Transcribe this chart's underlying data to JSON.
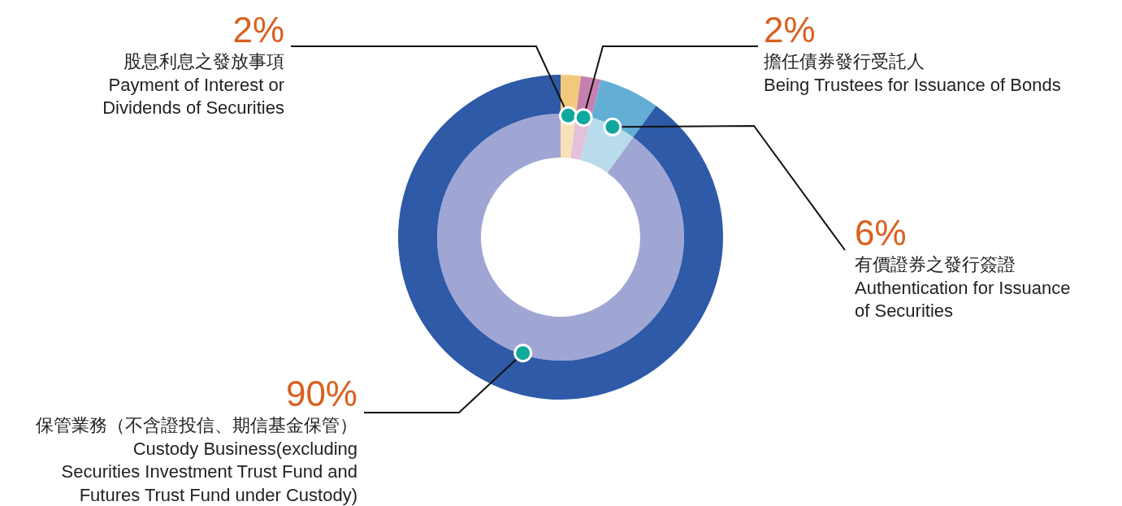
{
  "chart_data": {
    "type": "donut",
    "categories": [
      "股息利息之發放事項\nPayment of Interest or\nDividends of Securities",
      "擔任債券發行受託人\nBeing Trustees for Issuance of Bonds",
      "有價證券之發行簽證\nAuthentication for Issuance\nof Securities",
      "保管業務（不含證投信、期信基金保管）\nCustody Business(excluding\nSecurities Investment Trust Fund and\nFutures Trust Fund under Custody)"
    ],
    "value_labels": [
      "2%",
      "2%",
      "6%",
      "90%"
    ],
    "series": [
      {
        "values": [
          2,
          2,
          6,
          90
        ],
        "colors": [
          "#f8e1b8",
          "#e3c1d8",
          "#b9dcec",
          "#a0a6d4"
        ]
      },
      {
        "values": [
          2,
          2,
          6,
          90
        ],
        "colors": [
          "#f2c97a",
          "#c77fb0",
          "#63aed4",
          "#2e5aa8"
        ]
      }
    ]
  }
}
